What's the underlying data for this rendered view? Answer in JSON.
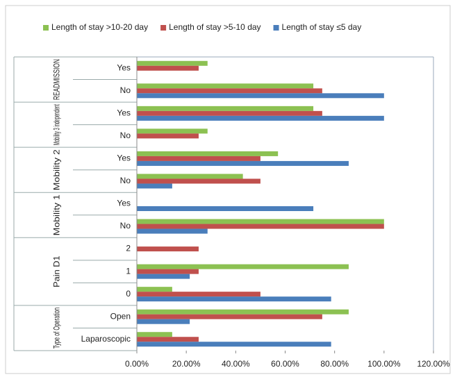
{
  "chart_data": {
    "type": "bar",
    "orientation": "horizontal",
    "groups": [
      {
        "label": "READMISSION",
        "categories": [
          "Yes",
          "No"
        ]
      },
      {
        "label": "Mobility 3 independent",
        "categories": [
          "Yes",
          "No"
        ]
      },
      {
        "label": "Mobility 2",
        "categories": [
          "Yes",
          "No"
        ]
      },
      {
        "label": "Mobility 1",
        "categories": [
          "Yes",
          "No"
        ]
      },
      {
        "label": "Pain D1",
        "categories": [
          "2",
          "1",
          "0"
        ]
      },
      {
        "label": "Type of Operation",
        "categories": [
          "Open",
          "Laparoscopic"
        ]
      }
    ],
    "series": [
      {
        "name": "Length of stay >10-20 day",
        "color": "#8cc152",
        "values": [
          28.6,
          71.4,
          71.4,
          28.6,
          57.1,
          42.9,
          0,
          100,
          0,
          85.7,
          14.3,
          85.7,
          14.3
        ]
      },
      {
        "name": "Length of stay >5-10 day",
        "color": "#c0504d",
        "values": [
          25,
          75,
          75,
          25,
          50,
          50,
          0,
          100,
          25,
          25,
          50,
          75,
          25
        ]
      },
      {
        "name": "Length of stay ≤5 day",
        "color": "#4a7ebb",
        "values": [
          0,
          100,
          100,
          0,
          85.7,
          14.3,
          71.4,
          28.6,
          0,
          21.4,
          78.6,
          21.4,
          78.6
        ]
      }
    ],
    "xlim": [
      0,
      120
    ],
    "xticks": [
      {
        "value": 0,
        "label": "0.00%"
      },
      {
        "value": 20,
        "label": "20.00%"
      },
      {
        "value": 40,
        "label": "40.00%"
      },
      {
        "value": 60,
        "label": "60.00%"
      },
      {
        "value": 80,
        "label": "80.00%"
      },
      {
        "value": 100,
        "label": "100.00%"
      },
      {
        "value": 120,
        "label": "120.00%"
      }
    ],
    "legend": "top"
  }
}
